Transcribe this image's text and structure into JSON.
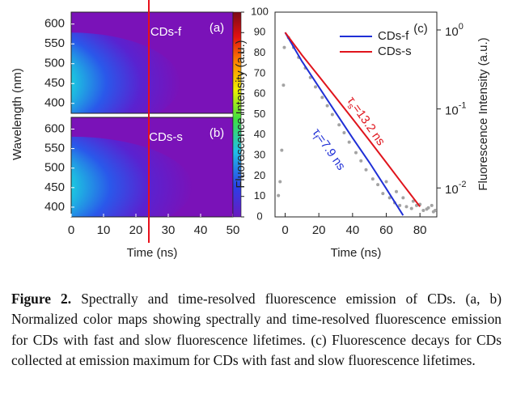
{
  "chart_data": [
    {
      "type": "heatmap",
      "xlabel": "Time (ns)",
      "ylabel": "Wavelength (nm)",
      "xlim": [
        0,
        50
      ],
      "xticks": [
        0,
        10,
        20,
        30,
        40,
        50
      ],
      "ylim": [
        375,
        630
      ],
      "yticks": [
        400,
        450,
        500,
        550,
        600
      ],
      "maps": [
        {
          "label": "CDs-f",
          "tag": "(a)"
        },
        {
          "label": "CDs-s",
          "tag": "(b)"
        }
      ],
      "marker_x": 24,
      "marker_color": "#e8101a",
      "colorbar": {
        "label": "Fluorescence Intensity (a.u.)",
        "lim": [
          0,
          100
        ],
        "ticks": [
          0,
          10,
          20,
          30,
          40,
          50,
          60,
          70,
          80,
          90,
          100
        ]
      }
    },
    {
      "type": "line",
      "tag": "(c)",
      "xlabel": "Time (ns)",
      "ylabel": "Fluorescence Intensity (a.u.)",
      "xlim": [
        -6,
        90
      ],
      "xticks": [
        0,
        20,
        40,
        60,
        80
      ],
      "ylog": true,
      "yaxis_side": "right",
      "ylim": [
        0.0043,
        1.68
      ],
      "yticks": [
        {
          "value": 0.01,
          "label": "10",
          "exponent": "-2"
        },
        {
          "value": 0.1,
          "label": "10",
          "exponent": "-1"
        },
        {
          "value": 1,
          "label": "10",
          "exponent": "0"
        }
      ],
      "legend": "upper right",
      "series": [
        {
          "name": "CDs-f",
          "color": "#1f2fd6",
          "x": [
            0,
            10,
            20,
            30,
            40,
            50,
            60,
            70
          ],
          "values": [
            0.93,
            0.4,
            0.19,
            0.09,
            0.043,
            0.021,
            0.0098,
            0.0045
          ]
        },
        {
          "name": "CDs-s",
          "color": "#e0141c",
          "x": [
            0,
            10,
            20,
            30,
            40,
            50,
            60,
            70,
            80
          ],
          "values": [
            0.93,
            0.48,
            0.26,
            0.14,
            0.075,
            0.04,
            0.021,
            0.011,
            0.0058
          ]
        }
      ],
      "points": {
        "color": "#a3a3a3",
        "x": [
          -4,
          -3,
          -2,
          -1,
          -0.5,
          2,
          5,
          8,
          12,
          15,
          18,
          22,
          25,
          28,
          32,
          35,
          38,
          42,
          45,
          48,
          52,
          55,
          58,
          62,
          65,
          68,
          72,
          75,
          78,
          82,
          85,
          88,
          60,
          66,
          70,
          76,
          80,
          84,
          87,
          89
        ],
        "values": [
          0.008,
          0.012,
          0.03,
          0.2,
          0.6,
          0.8,
          0.6,
          0.45,
          0.33,
          0.25,
          0.19,
          0.14,
          0.11,
          0.085,
          0.063,
          0.05,
          0.038,
          0.028,
          0.022,
          0.017,
          0.013,
          0.011,
          0.0085,
          0.0075,
          0.0065,
          0.006,
          0.0058,
          0.0055,
          0.006,
          0.0052,
          0.0056,
          0.005,
          0.012,
          0.009,
          0.0075,
          0.0068,
          0.0062,
          0.0054,
          0.006,
          0.0052
        ]
      },
      "annotations": [
        {
          "symbol": "τ",
          "subscript": "s",
          "text": "=13.2 ns",
          "color": "#e0141c"
        },
        {
          "symbol": "τ",
          "subscript": "f",
          "text": "=7.9 ns",
          "color": "#1f2fd6"
        }
      ]
    }
  ],
  "caption": {
    "label": "Figure 2.",
    "text": "Spectrally and time-resolved fluorescence emission of CDs. (a, b) Normalized color maps showing spectrally and time-resolved fluorescence emission for CDs with fast and slow fluorescence lifetimes. (c) Fluorescence decays for CDs collected at emission maximum for CDs with fast and slow fluorescence lifetimes."
  }
}
